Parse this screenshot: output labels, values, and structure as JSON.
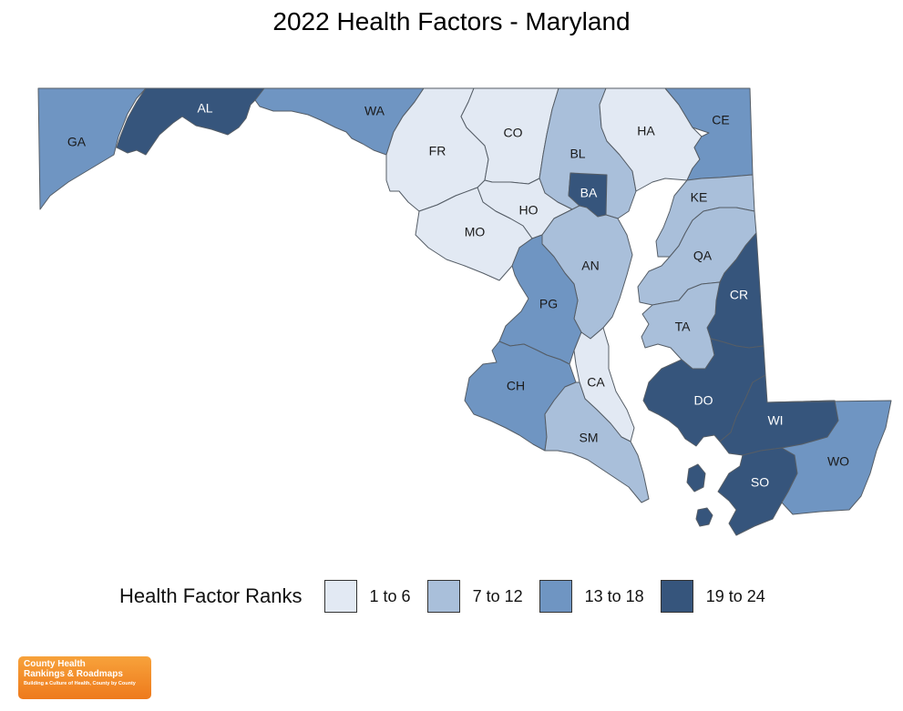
{
  "title": "2022 Health Factors - Maryland",
  "legend": {
    "title": "Health Factor Ranks",
    "items": [
      {
        "label": "1 to 6",
        "color": "#e2e9f3"
      },
      {
        "label": "7 to 12",
        "color": "#a9bfda"
      },
      {
        "label": "13 to 18",
        "color": "#6f95c2"
      },
      {
        "label": "19 to 24",
        "color": "#36557c"
      }
    ]
  },
  "counties": [
    {
      "abbr": "GA",
      "rank_group": "13 to 18"
    },
    {
      "abbr": "AL",
      "rank_group": "19 to 24"
    },
    {
      "abbr": "WA",
      "rank_group": "13 to 18"
    },
    {
      "abbr": "FR",
      "rank_group": "1 to 6"
    },
    {
      "abbr": "CO",
      "rank_group": "1 to 6"
    },
    {
      "abbr": "BL",
      "rank_group": "7 to 12"
    },
    {
      "abbr": "HA",
      "rank_group": "1 to 6"
    },
    {
      "abbr": "CE",
      "rank_group": "13 to 18"
    },
    {
      "abbr": "BA",
      "rank_group": "19 to 24"
    },
    {
      "abbr": "HO",
      "rank_group": "1 to 6"
    },
    {
      "abbr": "MO",
      "rank_group": "1 to 6"
    },
    {
      "abbr": "AN",
      "rank_group": "7 to 12"
    },
    {
      "abbr": "KE",
      "rank_group": "7 to 12"
    },
    {
      "abbr": "QA",
      "rank_group": "7 to 12"
    },
    {
      "abbr": "CR",
      "rank_group": "19 to 24"
    },
    {
      "abbr": "TA",
      "rank_group": "7 to 12"
    },
    {
      "abbr": "PG",
      "rank_group": "13 to 18"
    },
    {
      "abbr": "CA",
      "rank_group": "1 to 6"
    },
    {
      "abbr": "CH",
      "rank_group": "13 to 18"
    },
    {
      "abbr": "DO",
      "rank_group": "19 to 24"
    },
    {
      "abbr": "SM",
      "rank_group": "7 to 12"
    },
    {
      "abbr": "WI",
      "rank_group": "19 to 24"
    },
    {
      "abbr": "WO",
      "rank_group": "13 to 18"
    },
    {
      "abbr": "SO",
      "rank_group": "19 to 24"
    }
  ],
  "logo": {
    "line1": "County Health",
    "line2": "Rankings & Roadmaps",
    "tagline": "Building a Culture of Health, County by County"
  }
}
